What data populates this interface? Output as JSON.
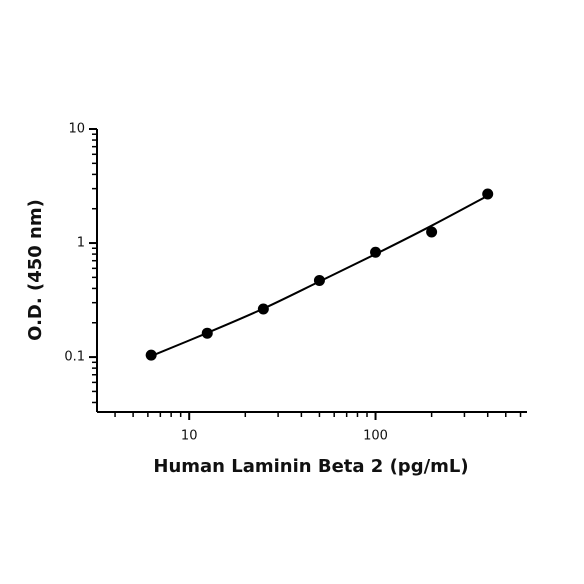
{
  "chart_data": {
    "type": "scatter",
    "x_label": "Human Laminin Beta 2 (pg/mL)",
    "y_label": "O.D. (450 nm)",
    "x_scale": "log",
    "y_scale": "log",
    "xlim": [
      3.2,
      650
    ],
    "ylim": [
      0.033,
      10
    ],
    "xticks": [
      10,
      100
    ],
    "xminor": [
      4,
      5,
      6,
      7,
      8,
      9,
      20,
      30,
      40,
      50,
      60,
      70,
      80,
      90,
      200,
      300,
      400,
      500,
      600
    ],
    "yticks": [
      0.1,
      1,
      10
    ],
    "yminor": [
      0.04,
      0.05,
      0.06,
      0.07,
      0.08,
      0.09,
      0.2,
      0.3,
      0.4,
      0.5,
      0.6,
      0.7,
      0.8,
      0.9,
      2,
      3,
      4,
      5,
      6,
      7,
      8,
      9
    ],
    "series": [
      {
        "kind": "points",
        "color": "#000000",
        "x": [
          6.25,
          12.5,
          25,
          50,
          100,
          200,
          400
        ],
        "values": [
          0.104,
          0.162,
          0.264,
          0.47,
          0.83,
          1.25,
          2.69
        ]
      },
      {
        "kind": "curve",
        "color": "#000000",
        "x": [
          6.25,
          12.5,
          25,
          50,
          100,
          200,
          400
        ],
        "values": [
          0.102,
          0.163,
          0.266,
          0.46,
          0.8,
          1.42,
          2.6
        ]
      }
    ]
  }
}
